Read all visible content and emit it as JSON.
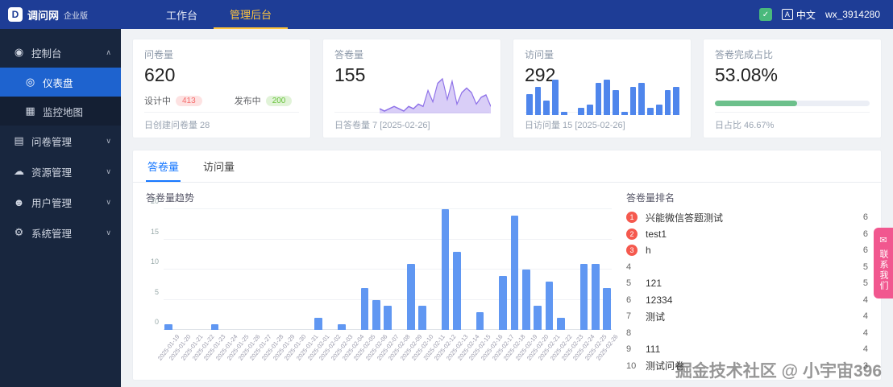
{
  "colors": {
    "header_bg": "#1e3d96",
    "sidebar_bg": "#18263e",
    "sidebar_active": "#1e63cf",
    "accent_blue": "#1677ff",
    "tab_gold": "#ffc53d",
    "bar_blue": "#6097f2",
    "mini_bar_blue": "#4f86ec",
    "spark_purple": "#8e71e8",
    "progress_green": "#6cc08b",
    "badge_red": "#f56c6c",
    "badge_green": "#67c23a",
    "contact_pink": "#f1578f",
    "rank_red": "#f5594e"
  },
  "header": {
    "logo_mark": "D",
    "logo_text": "调问网",
    "logo_badge": "企业版",
    "tabs": [
      {
        "label": "工作台",
        "active": false
      },
      {
        "label": "管理后台",
        "active": true
      }
    ],
    "check_icon_glyph": "✓",
    "translate_icon_glyph": "A",
    "lang": "中文",
    "username": "wx_3914280"
  },
  "sidebar": {
    "items": [
      {
        "label": "控制台",
        "glyph": "◉",
        "caret": "∧"
      },
      {
        "label": "仪表盘",
        "glyph": "◎",
        "active": true
      },
      {
        "label": "监控地图",
        "glyph": "▦"
      },
      {
        "label": "问卷管理",
        "glyph": "▤",
        "caret": "∨"
      },
      {
        "label": "资源管理",
        "glyph": "☁",
        "caret": "∨"
      },
      {
        "label": "用户管理",
        "glyph": "☻",
        "caret": "∨"
      },
      {
        "label": "系统管理",
        "glyph": "⚙",
        "caret": "∨"
      }
    ]
  },
  "stats": {
    "cards": [
      {
        "title": "问卷量",
        "value": "620",
        "badges": [
          {
            "label": "设计中",
            "value": "413",
            "type": "red"
          },
          {
            "label": "发布中",
            "value": "200",
            "type": "green"
          }
        ],
        "footer": "日创建问卷量 28"
      },
      {
        "title": "答卷量",
        "value": "155",
        "sparkline": [
          1,
          0,
          1,
          2,
          1,
          0,
          2,
          1,
          3,
          2,
          9,
          4,
          12,
          14,
          5,
          13,
          3,
          8,
          10,
          8,
          3,
          6,
          7,
          2
        ],
        "footer": "日答卷量 7 [2025-02-26]"
      },
      {
        "title": "访问量",
        "value": "292",
        "minibars": [
          6,
          8,
          4,
          10,
          1,
          0,
          2,
          3,
          9,
          10,
          7,
          1,
          8,
          9,
          2,
          3,
          7,
          8
        ],
        "footer": "日访问量 15 [2025-02-26]"
      },
      {
        "title": "答卷完成占比",
        "value": "53.08%",
        "progress": 53.08,
        "footer": "日占比 46.67%"
      }
    ]
  },
  "panel": {
    "tabs": [
      {
        "label": "答卷量",
        "active": true
      },
      {
        "label": "访问量",
        "active": false
      }
    ],
    "chart_title": "答卷量趋势",
    "ranking_title": "答卷量排名",
    "ranking": [
      {
        "rank": 1,
        "title": "兴能微信答题测试",
        "count": 6
      },
      {
        "rank": 2,
        "title": "test1",
        "count": 6
      },
      {
        "rank": 3,
        "title": "h",
        "count": 6
      },
      {
        "rank": 4,
        "title": "",
        "count": 5
      },
      {
        "rank": 5,
        "title": "121",
        "count": 5
      },
      {
        "rank": 6,
        "title": "12334",
        "count": 4
      },
      {
        "rank": 7,
        "title": "测试",
        "count": 4
      },
      {
        "rank": 8,
        "title": "",
        "count": 4
      },
      {
        "rank": 9,
        "title": "111",
        "count": 4
      },
      {
        "rank": 10,
        "title": "测试问卷",
        "count": 3
      }
    ]
  },
  "chart_data": {
    "type": "bar",
    "title": "答卷量趋势",
    "x": [
      "2025-01-19",
      "2025-01-20",
      "2025-01-21",
      "2025-01-22",
      "2025-01-23",
      "2025-01-24",
      "2025-01-25",
      "2025-01-26",
      "2025-01-27",
      "2025-01-28",
      "2025-01-29",
      "2025-01-30",
      "2025-01-31",
      "2025-02-01",
      "2025-02-02",
      "2025-02-03",
      "2025-02-04",
      "2025-02-05",
      "2025-02-06",
      "2025-02-07",
      "2025-02-08",
      "2025-02-09",
      "2025-02-10",
      "2025-02-11",
      "2025-02-12",
      "2025-02-13",
      "2025-02-14",
      "2025-02-15",
      "2025-02-16",
      "2025-02-17",
      "2025-02-18",
      "2025-02-19",
      "2025-02-20",
      "2025-02-21",
      "2025-02-22",
      "2025-02-23",
      "2025-02-24",
      "2025-02-25",
      "2025-02-26"
    ],
    "values": [
      1,
      0,
      0,
      0,
      1,
      0,
      0,
      0,
      0,
      0,
      0,
      0,
      0,
      2,
      0,
      1,
      0,
      7,
      5,
      4,
      0,
      11,
      4,
      0,
      20,
      13,
      0,
      3,
      0,
      9,
      19,
      10,
      4,
      8,
      2,
      0,
      11,
      11,
      7
    ],
    "ylim": [
      0,
      20
    ],
    "yticks": [
      0,
      5,
      10,
      15,
      20
    ],
    "grid": true,
    "legend": "none"
  },
  "contact": {
    "icon_glyph": "✉",
    "label": "联系我们"
  },
  "watermark": "掘金技术社区 @ 小宇宙396"
}
